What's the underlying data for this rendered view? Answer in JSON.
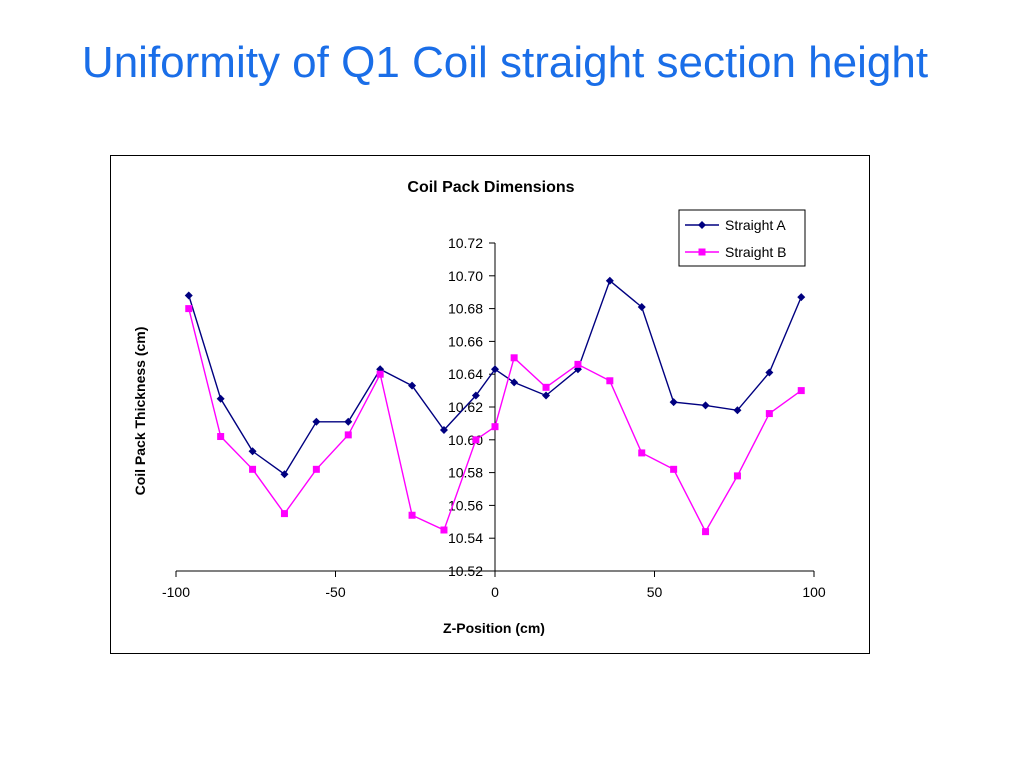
{
  "slide": {
    "title": "Uniformity of Q1 Coil straight section height"
  },
  "chart_data": {
    "type": "line",
    "title": "Coil Pack Dimensions",
    "xlabel": "Z-Position (cm)",
    "ylabel": "Coil Pack Thickness (cm)",
    "xlim": [
      -100,
      100
    ],
    "ylim": [
      10.52,
      10.72
    ],
    "x_ticks": [
      "-100",
      "-50",
      "0",
      "50",
      "100"
    ],
    "y_ticks": [
      "10.52",
      "10.54",
      "10.56",
      "10.58",
      "10.60",
      "10.62",
      "10.64",
      "10.66",
      "10.68",
      "10.70",
      "10.72"
    ],
    "grid": false,
    "legend_position": "top-right",
    "series": [
      {
        "name": "Straight A",
        "color": "#000080",
        "marker": "diamond",
        "x": [
          -96,
          -86,
          -76,
          -66,
          -56,
          -46,
          -36,
          -26,
          -16,
          -6,
          0,
          6,
          16,
          26,
          36,
          46,
          56,
          66,
          76,
          86,
          96
        ],
        "y": [
          10.688,
          10.625,
          10.593,
          10.579,
          10.611,
          10.611,
          10.643,
          10.633,
          10.606,
          10.627,
          10.643,
          10.635,
          10.627,
          10.643,
          10.697,
          10.681,
          10.623,
          10.621,
          10.618,
          10.641,
          10.687
        ]
      },
      {
        "name": "Straight B",
        "color": "#ff00ff",
        "marker": "square",
        "x": [
          -96,
          -86,
          -76,
          -66,
          -56,
          -46,
          -36,
          -26,
          -16,
          -6,
          0,
          6,
          16,
          26,
          36,
          46,
          56,
          66,
          76,
          86,
          96
        ],
        "y": [
          10.68,
          10.602,
          10.582,
          10.555,
          10.582,
          10.603,
          10.64,
          10.554,
          10.545,
          10.6,
          10.608,
          10.65,
          10.632,
          10.646,
          10.636,
          10.592,
          10.582,
          10.544,
          10.578,
          10.616,
          10.63
        ]
      }
    ]
  }
}
